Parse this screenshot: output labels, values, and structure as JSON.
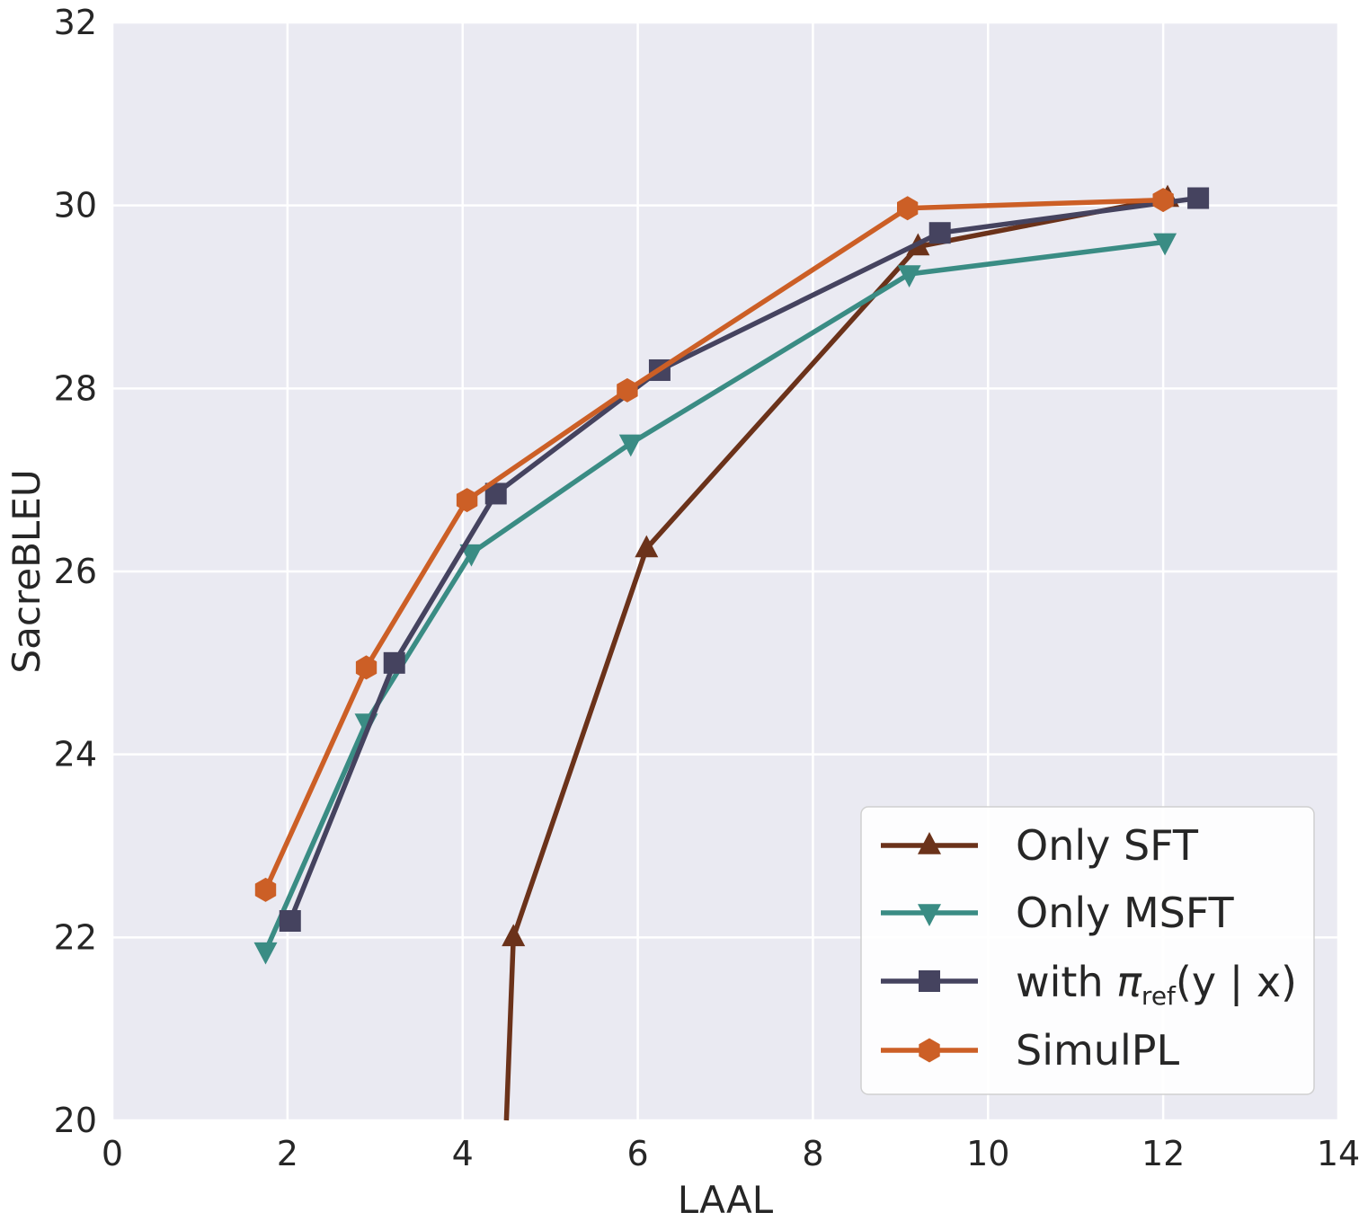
{
  "chart_data": {
    "type": "line",
    "title": "",
    "xlabel": "LAAL",
    "ylabel": "SacreBLEU",
    "xlim": [
      0,
      14
    ],
    "ylim": [
      20,
      32
    ],
    "xticks": [
      0,
      2,
      4,
      6,
      8,
      10,
      12,
      14
    ],
    "yticks": [
      20,
      22,
      24,
      26,
      28,
      30,
      32
    ],
    "grid": true,
    "legend_position": "bottom-right",
    "series": [
      {
        "name": "Only SFT",
        "color": "#6b321a",
        "marker": "triangle-up",
        "x": [
          4.5,
          4.58,
          6.1,
          9.2,
          12.05
        ],
        "y": [
          19.9,
          22.0,
          26.25,
          29.55,
          30.08
        ]
      },
      {
        "name": "Only MSFT",
        "color": "#3a8c84",
        "marker": "triangle-down",
        "x": [
          1.75,
          2.9,
          4.1,
          5.92,
          9.1,
          12.02
        ],
        "y": [
          21.85,
          24.35,
          26.2,
          27.4,
          29.25,
          29.6
        ]
      },
      {
        "name": "with π_ref(y | x)",
        "color": "#45435f",
        "marker": "square",
        "x": [
          2.03,
          3.22,
          4.38,
          6.25,
          9.45,
          12.4
        ],
        "y": [
          22.18,
          25.0,
          26.85,
          28.2,
          29.7,
          30.08
        ]
      },
      {
        "name": "SimulPL",
        "color": "#cc5f26",
        "marker": "hexagon",
        "x": [
          1.75,
          2.9,
          4.05,
          5.88,
          9.08,
          12.0
        ],
        "y": [
          22.52,
          24.95,
          26.78,
          27.98,
          29.97,
          30.06
        ]
      }
    ]
  },
  "legend": {
    "entries": [
      {
        "label": "Only SFT"
      },
      {
        "label": "Only MSFT"
      },
      {
        "label_pre": "with ",
        "label_pi": "π",
        "label_sub": "ref",
        "label_post": "(y | x)"
      },
      {
        "label": "SimulPL"
      }
    ]
  }
}
